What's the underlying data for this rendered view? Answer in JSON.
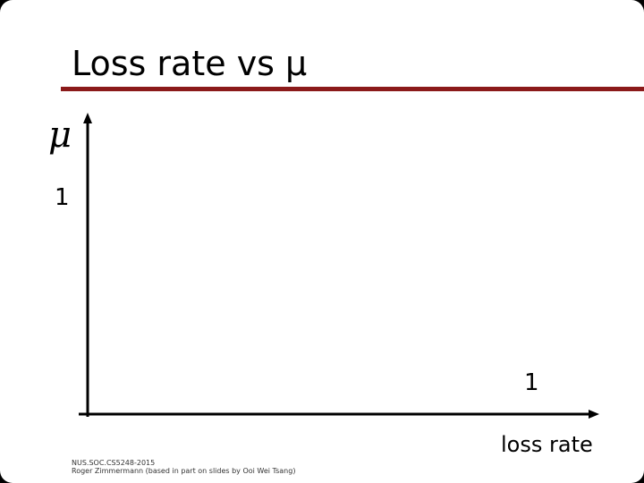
{
  "title": "Loss rate vs μ",
  "diagram": {
    "y_axis_label": "μ",
    "y_tick": "1",
    "x_tick": "1",
    "x_axis_label": "loss rate"
  },
  "footer": {
    "lines": [
      "NUS.SOC.CS5248-2015",
      "Roger Zimmermann (based in part on slides by Ooi Wei Tsang)"
    ]
  }
}
